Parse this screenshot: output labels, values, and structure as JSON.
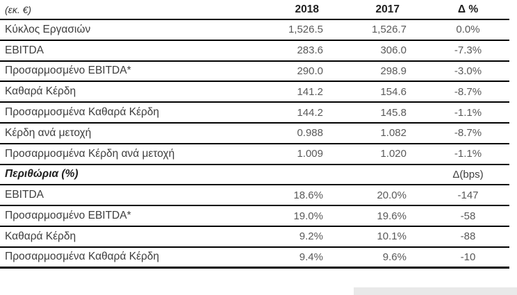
{
  "table": {
    "header": {
      "unit": "(εκ. €)",
      "y2018": "2018",
      "y2017": "2017",
      "delta": "Δ %"
    },
    "rows": [
      {
        "label": "Κύκλος Εργασιών",
        "y2018": "1,526.5",
        "y2017": "1,526.7",
        "delta": "0.0%"
      },
      {
        "label": "EBITDA",
        "y2018": "283.6",
        "y2017": "306.0",
        "delta": "-7.3%"
      },
      {
        "label": "Προσαρμοσμένο EBITDA*",
        "y2018": "290.0",
        "y2017": "298.9",
        "delta": "-3.0%"
      },
      {
        "label": "Καθαρά Κέρδη",
        "y2018": "141.2",
        "y2017": "154.6",
        "delta": "-8.7%"
      },
      {
        "label": "Προσαρμοσμένα Καθαρά Κέρδη",
        "y2018": "144.2",
        "y2017": "145.8",
        "delta": "-1.1%"
      },
      {
        "label": "Κέρδη ανά μετοχή",
        "y2018": "0.988",
        "y2017": "1.082",
        "delta": "-8.7%"
      },
      {
        "label": "Προσαρμοσμένα Κέρδη ανά μετοχή",
        "y2018": "1.009",
        "y2017": "1.020",
        "delta": "-1.1%"
      }
    ],
    "section": {
      "label": "Περιθώρια (%)",
      "delta_header": "Δ(bps)"
    },
    "margin_rows": [
      {
        "label": "EBITDA",
        "y2018": "18.6%",
        "y2017": "20.0%",
        "delta": "-147"
      },
      {
        "label": "Προσαρμοσμένο EBITDA*",
        "y2018": "19.0%",
        "y2017": "19.6%",
        "delta": "-58"
      },
      {
        "label": "Καθαρά Κέρδη",
        "y2018": "9.2%",
        "y2017": "10.1%",
        "delta": "-88"
      },
      {
        "label": "Προσαρμοσμένα Καθαρά Κέρδη",
        "y2018": "9.4%",
        "y2017": "9.6%",
        "delta": "-10"
      }
    ]
  },
  "chart_data": {
    "type": "table",
    "columns": [
      "(εκ. €)",
      "2018",
      "2017",
      "Δ %"
    ],
    "rows": [
      [
        "Κύκλος Εργασιών",
        1526.5,
        1526.7,
        "0.0%"
      ],
      [
        "EBITDA",
        283.6,
        306.0,
        "-7.3%"
      ],
      [
        "Προσαρμοσμένο EBITDA*",
        290.0,
        298.9,
        "-3.0%"
      ],
      [
        "Καθαρά Κέρδη",
        141.2,
        154.6,
        "-8.7%"
      ],
      [
        "Προσαρμοσμένα Καθαρά Κέρδη",
        144.2,
        145.8,
        "-1.1%"
      ],
      [
        "Κέρδη ανά μετοχή",
        0.988,
        1.082,
        "-8.7%"
      ],
      [
        "Προσαρμοσμένα Κέρδη ανά μετοχή",
        1.009,
        1.02,
        "-1.1%"
      ]
    ],
    "section2_title": "Περιθώρια (%)",
    "section2_delta_unit": "Δ(bps)",
    "section2_rows": [
      [
        "EBITDA",
        "18.6%",
        "20.0%",
        -147
      ],
      [
        "Προσαρμοσμένο EBITDA*",
        "19.0%",
        "19.6%",
        -58
      ],
      [
        "Καθαρά Κέρδη",
        "9.2%",
        "10.1%",
        -88
      ],
      [
        "Προσαρμοσμένα Καθαρά Κέρδη",
        "9.4%",
        "9.6%",
        -10
      ]
    ],
    "layout": {
      "grid": "horizontal-rules-only",
      "value_alignment": "right",
      "delta_alignment": "center"
    }
  },
  "colors": {
    "line": "#000000",
    "label_text": "#3d3d3d",
    "number_text": "#595959",
    "header_text": "#1f1f1f",
    "background": "#ffffff",
    "shadow": "#e9e9e9"
  }
}
